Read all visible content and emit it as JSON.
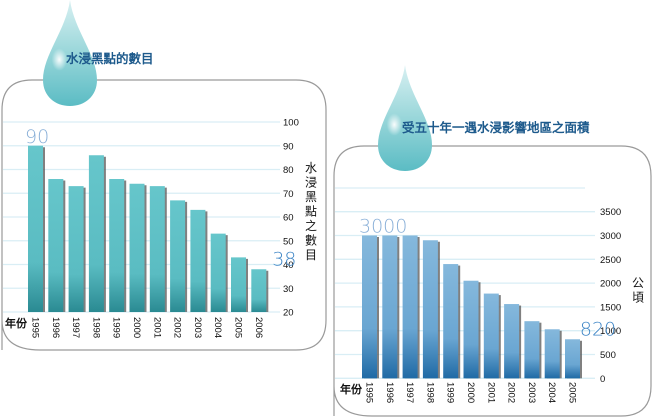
{
  "chart_data": [
    {
      "type": "bar",
      "title": "水浸黑點的數目",
      "xlabel": "年份",
      "ylabel": "水浸黑點之數目",
      "categories": [
        "1995",
        "1996",
        "1997",
        "1998",
        "1999",
        "2000",
        "2001",
        "2002",
        "2003",
        "2004",
        "2005",
        "2006"
      ],
      "values": [
        90,
        76,
        73,
        86,
        76,
        74,
        73,
        67,
        63,
        53,
        43,
        38
      ],
      "ylim": [
        20,
        100
      ],
      "yticks": [
        "100",
        "90",
        "80",
        "70",
        "60",
        "50",
        "40",
        "30",
        "20"
      ],
      "ytick_values": [
        100,
        90,
        80,
        70,
        60,
        50,
        40,
        30,
        20
      ],
      "annotations": [
        {
          "category": "1995",
          "text": "90"
        },
        {
          "category": "2006",
          "text": "38"
        }
      ],
      "grid": true,
      "y_axis_side": "right",
      "colors": {
        "bar": "#5fc0c6",
        "bar_dark": "#2a8a92",
        "annotation": "#8ab0d8",
        "annotation_end": "#3f86c6",
        "grid": "#d9eef5",
        "title": "#1d5a8c"
      }
    },
    {
      "type": "bar",
      "title": "受五十年一遇水浸影響地區之面積",
      "xlabel": "年份",
      "ylabel": "公頃",
      "categories": [
        "1995",
        "1996",
        "1997",
        "1998",
        "1999",
        "2000",
        "2001",
        "2002",
        "2003",
        "2004",
        "2005"
      ],
      "values": [
        3000,
        3000,
        3000,
        2900,
        2400,
        2050,
        1780,
        1560,
        1200,
        1030,
        820
      ],
      "ylim": [
        0,
        4000
      ],
      "yticks": [
        "3500",
        "3000",
        "2500",
        "2000",
        "1500",
        "1000",
        "500",
        "0"
      ],
      "ytick_values": [
        3500,
        3000,
        2500,
        2000,
        1500,
        1000,
        500,
        0
      ],
      "annotations": [
        {
          "category": "1995",
          "text": "3000"
        },
        {
          "category": "2005",
          "text": "820"
        }
      ],
      "grid": true,
      "y_axis_side": "right",
      "colors": {
        "bar": "#7fb3d9",
        "bar_dark": "#1f6aa5",
        "annotation": "#8ab0d8",
        "annotation_end": "#3f86c6",
        "grid": "#d9eef5",
        "title": "#1d5a8c"
      }
    }
  ]
}
